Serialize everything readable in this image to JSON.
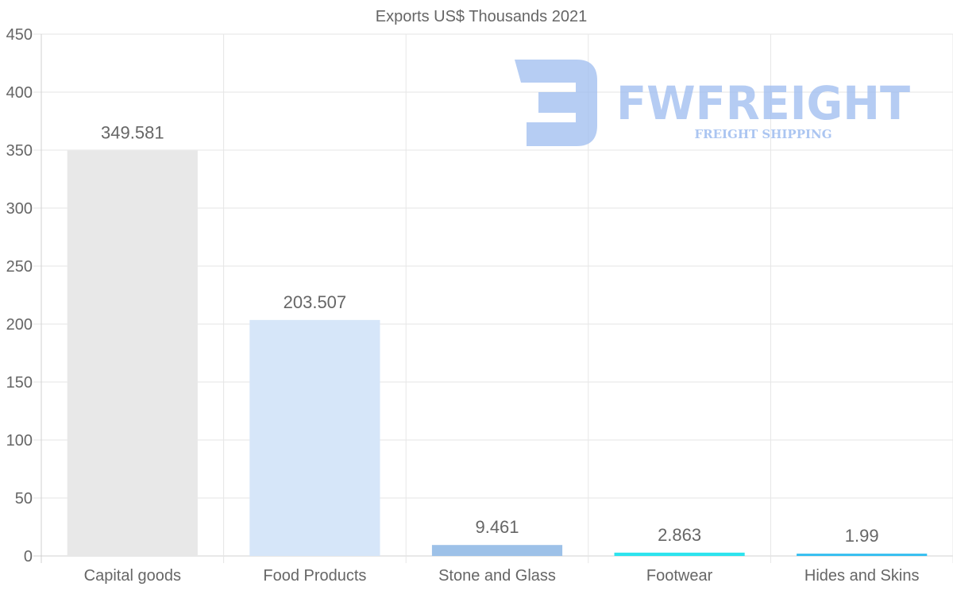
{
  "chart_data": {
    "type": "bar",
    "title": "Exports US$ Thousands 2021",
    "categories": [
      "Capital goods",
      "Food Products",
      "Stone and Glass",
      "Footwear",
      "Hides and Skins"
    ],
    "values": [
      349.581,
      203.507,
      9.461,
      2.863,
      1.99
    ],
    "value_labels": [
      "349.581",
      "203.507",
      "9.461",
      "2.863",
      "1.99"
    ],
    "colors": [
      "#e8e8e8",
      "#d6e6f9",
      "#9dc1e8",
      "#2de3ee",
      "#35bff0"
    ],
    "ylim": [
      0,
      450
    ],
    "yticks": [
      0,
      50,
      100,
      150,
      200,
      250,
      300,
      350,
      400,
      450
    ],
    "xlabel": "",
    "ylabel": "",
    "grid": true,
    "legend": "none"
  },
  "watermark": {
    "brand": "FWFREIGHT",
    "tagline": "FREIGHT SHIPPING",
    "color": "#9dbcef"
  }
}
